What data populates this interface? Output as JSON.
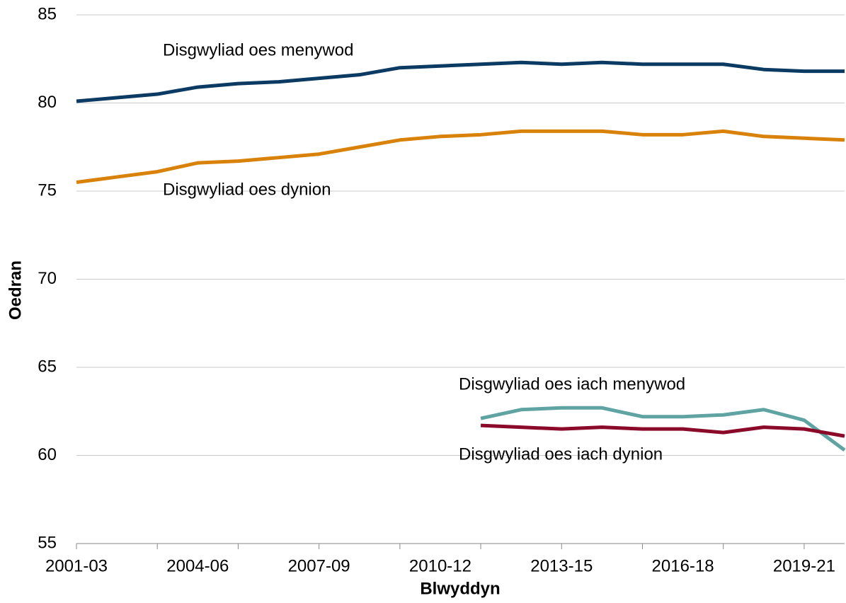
{
  "chart_data": {
    "type": "line",
    "x_label": "Blwyddyn",
    "y_label": "Oedran",
    "categories": [
      "2001-03",
      null,
      null,
      "2004-06",
      null,
      null,
      "2007-09",
      null,
      null,
      "2010-12",
      null,
      null,
      "2013-15",
      null,
      null,
      "2016-18",
      null,
      null,
      "2019-21",
      null
    ],
    "series": [
      {
        "name": "Disgwyliad oes menywod",
        "color": "#0b3a62",
        "values": [
          80.1,
          80.3,
          80.5,
          80.9,
          81.1,
          81.2,
          81.4,
          81.6,
          82.0,
          82.1,
          82.2,
          82.3,
          82.2,
          82.3,
          82.2,
          82.2,
          82.2,
          81.9,
          81.8,
          81.8
        ]
      },
      {
        "name": "Disgwyliad oes dynion",
        "color": "#d9820a",
        "values": [
          75.5,
          75.8,
          76.1,
          76.6,
          76.7,
          76.9,
          77.1,
          77.5,
          77.9,
          78.1,
          78.2,
          78.4,
          78.4,
          78.4,
          78.2,
          78.2,
          78.4,
          78.1,
          78.0,
          77.9
        ]
      },
      {
        "name": "Disgwyliad oes iach menywod",
        "color": "#5fa3a3",
        "values": [
          null,
          null,
          null,
          null,
          null,
          null,
          null,
          null,
          null,
          null,
          62.1,
          62.6,
          62.7,
          62.7,
          62.2,
          62.2,
          62.3,
          62.6,
          62.0,
          60.3
        ]
      },
      {
        "name": "Disgwyliad oes iach dynion",
        "color": "#8b0a2a",
        "values": [
          null,
          null,
          null,
          null,
          null,
          null,
          null,
          null,
          null,
          null,
          61.7,
          61.6,
          61.5,
          61.6,
          61.5,
          61.5,
          61.3,
          61.6,
          61.5,
          61.1
        ]
      }
    ],
    "ylim": [
      55,
      85
    ],
    "yticks": [
      55,
      60,
      65,
      70,
      75,
      80,
      85
    ],
    "grid": true
  }
}
